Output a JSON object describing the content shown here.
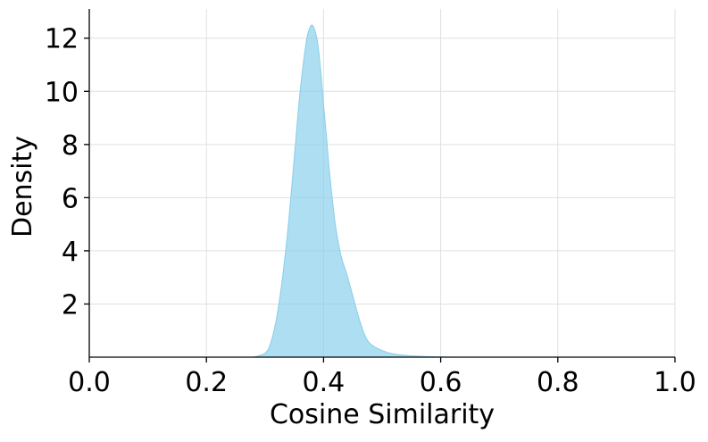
{
  "chart_data": {
    "type": "area",
    "title": "",
    "xlabel": "Cosine Similarity",
    "ylabel": "Density",
    "xlim": [
      0.0,
      1.0
    ],
    "ylim": [
      0,
      13.1
    ],
    "xticks": [
      0.0,
      0.2,
      0.4,
      0.6,
      0.8,
      1.0
    ],
    "xtick_labels": [
      "0.0",
      "0.2",
      "0.4",
      "0.6",
      "0.8",
      "1.0"
    ],
    "yticks": [
      2,
      4,
      6,
      8,
      10,
      12
    ],
    "ytick_labels": [
      "2",
      "4",
      "6",
      "8",
      "10",
      "12"
    ],
    "grid": true,
    "legend": "none",
    "series": [
      {
        "color": "#87CEEB",
        "x": [
          0.28,
          0.3,
          0.31,
          0.32,
          0.33,
          0.34,
          0.35,
          0.36,
          0.37,
          0.375,
          0.38,
          0.385,
          0.39,
          0.395,
          0.4,
          0.405,
          0.41,
          0.42,
          0.43,
          0.44,
          0.45,
          0.46,
          0.47,
          0.48,
          0.5,
          0.52,
          0.55,
          0.58,
          0.62
        ],
        "y": [
          0.0,
          0.15,
          0.55,
          1.5,
          3.0,
          5.0,
          7.5,
          10.0,
          11.8,
          12.3,
          12.5,
          12.3,
          11.8,
          10.8,
          9.5,
          8.3,
          7.0,
          5.0,
          3.8,
          3.1,
          2.3,
          1.5,
          0.85,
          0.5,
          0.25,
          0.12,
          0.05,
          0.02,
          0.0
        ]
      }
    ]
  }
}
